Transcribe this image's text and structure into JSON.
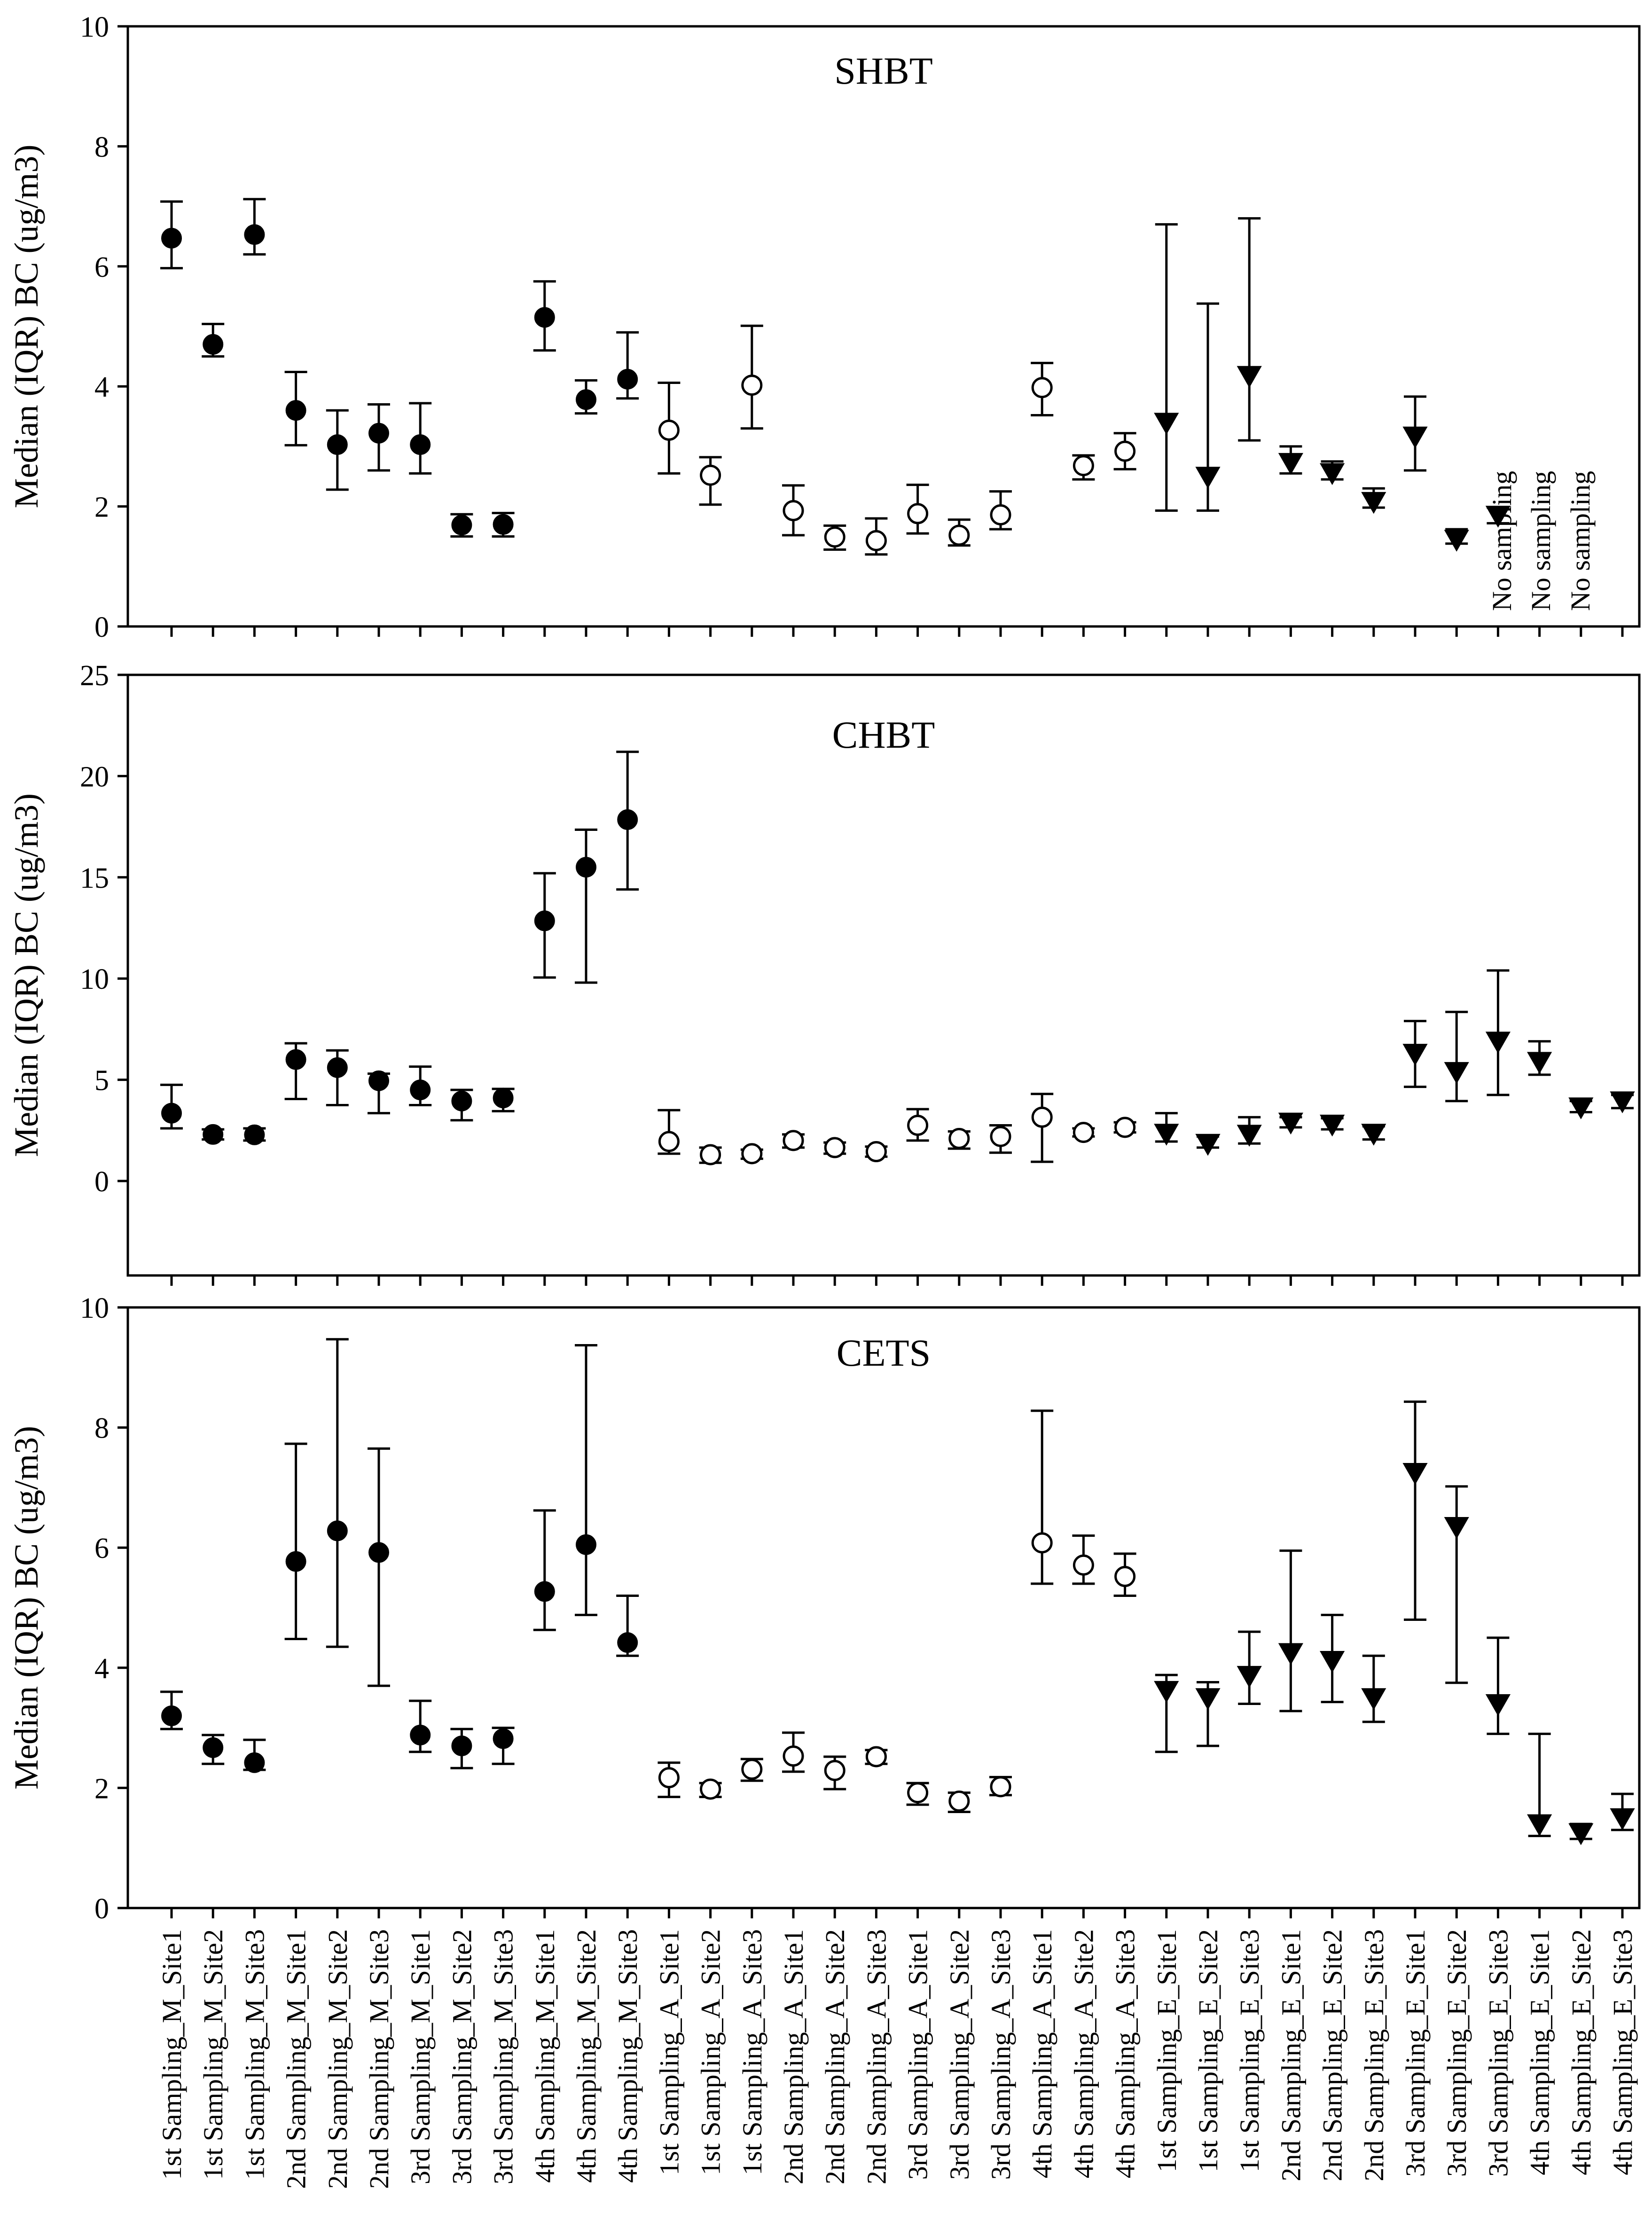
{
  "categories": [
    "1st Sampling_M_Site1",
    "1st Sampling_M_Site2",
    "1st Sampling_M_Site3",
    "2nd Sampling_M_Site1",
    "2nd Sampling_M_Site2",
    "2nd Sampling_M_Site3",
    "3rd Sampling_M_Site1",
    "3rd Sampling_M_Site2",
    "3rd Sampling_M_Site3",
    "4th Sampling_M_Site1",
    "4th Sampling_M_Site2",
    "4th Sampling_M_Site3",
    "1st Sampling_A_Site1",
    "1st Sampling_A_Site2",
    "1st Sampling_A_Site3",
    "2nd Sampling_A_Site1",
    "2nd Sampling_A_Site2",
    "2nd Sampling_A_Site3",
    "3rd Sampling_A_Site1",
    "3rd Sampling_A_Site2",
    "3rd Sampling_A_Site3",
    "4th Sampling_A_Site1",
    "4th Sampling_A_Site2",
    "4th Sampling_A_Site3",
    "1st Sampling_E_Site1",
    "1st Sampling_E_Site2",
    "1st Sampling_E_Site3",
    "2nd Sampling_E_Site1",
    "2nd Sampling_E_Site2",
    "2nd Sampling_E_Site3",
    "3rd Sampling_E_Site1",
    "3rd Sampling_E_Site2",
    "3rd Sampling_E_Site3",
    "4th Sampling_E_Site1",
    "4th Sampling_E_Site2",
    "4th Sampling_E_Site3"
  ],
  "chart_data": [
    {
      "type": "scatter",
      "title": "SHBT",
      "xlabel": "",
      "ylabel": "Median (IQR) BC (ug/m3)",
      "ylim": [
        0,
        10
      ],
      "yticks": [
        0,
        2,
        4,
        6,
        8,
        10
      ],
      "yticks_label": [
        "0",
        "2",
        "4",
        "6",
        "8",
        "10"
      ],
      "markers": [
        "filled-circle",
        "open-circle",
        "filled-triangle-down"
      ],
      "series": [
        {
          "name": "M",
          "marker": "filled-circle",
          "median": [
            6.47,
            4.7,
            6.53,
            3.6,
            3.03,
            3.22,
            3.03,
            1.69,
            1.7,
            5.15,
            3.78,
            4.12
          ],
          "q1": [
            5.97,
            4.5,
            6.2,
            3.02,
            2.28,
            2.6,
            2.55,
            1.5,
            1.5,
            4.6,
            3.55,
            3.8
          ],
          "q3": [
            7.08,
            5.04,
            7.12,
            4.24,
            3.6,
            3.7,
            3.72,
            1.87,
            1.89,
            5.75,
            4.1,
            4.9
          ]
        },
        {
          "name": "A",
          "marker": "open-circle",
          "median": [
            3.27,
            2.52,
            4.02,
            1.93,
            1.49,
            1.43,
            1.88,
            1.52,
            1.86,
            3.98,
            2.68,
            2.92
          ],
          "q1": [
            2.55,
            2.03,
            3.3,
            1.52,
            1.28,
            1.2,
            1.55,
            1.35,
            1.62,
            3.52,
            2.45,
            2.62
          ],
          "q3": [
            4.06,
            2.82,
            5.01,
            2.35,
            1.68,
            1.8,
            2.36,
            1.78,
            2.25,
            4.39,
            2.85,
            3.22
          ]
        },
        {
          "name": "E",
          "marker": "filled-triangle-down",
          "median": [
            3.4,
            2.5,
            4.18,
            2.73,
            2.56,
            2.08,
            3.17,
            1.45,
            1.85,
            null,
            null,
            null
          ],
          "q1": [
            1.93,
            1.93,
            3.1,
            2.55,
            2.45,
            1.98,
            2.6,
            1.38,
            1.72,
            null,
            null,
            null
          ],
          "q3": [
            6.7,
            5.38,
            6.8,
            3.0,
            2.75,
            2.3,
            3.83,
            1.62,
            1.98,
            null,
            null,
            null
          ]
        }
      ],
      "annotations": [
        "No sampling",
        "No sampling",
        "No sampling"
      ]
    },
    {
      "type": "scatter",
      "title": "CHBT",
      "xlabel": "",
      "ylabel": "Median (IQR) BC (ug/m3)",
      "ylim": [
        -5,
        25
      ],
      "yticks": [
        0,
        5,
        10,
        15,
        20,
        25
      ],
      "yticks_label": [
        "0",
        "5",
        "10",
        "15",
        "20",
        "25"
      ],
      "markers": [
        "filled-circle",
        "open-circle",
        "filled-triangle-down"
      ],
      "series": [
        {
          "name": "M",
          "marker": "filled-circle",
          "median": [
            3.35,
            2.3,
            2.28,
            6.0,
            5.6,
            4.95,
            4.5,
            3.95,
            4.1,
            12.85,
            15.5,
            17.85
          ],
          "q1": [
            2.6,
            2.05,
            2.0,
            4.05,
            3.75,
            3.35,
            3.75,
            3.0,
            3.45,
            10.05,
            9.8,
            14.4
          ],
          "q3": [
            4.75,
            2.55,
            2.6,
            6.8,
            6.45,
            5.3,
            5.65,
            4.5,
            4.55,
            15.2,
            17.35,
            21.2
          ]
        },
        {
          "name": "A",
          "marker": "open-circle",
          "median": [
            1.95,
            1.3,
            1.35,
            2.0,
            1.65,
            1.45,
            2.75,
            2.1,
            2.2,
            3.15,
            2.4,
            2.65
          ],
          "q1": [
            1.35,
            0.9,
            1.1,
            1.65,
            1.35,
            1.2,
            2.0,
            1.6,
            1.4,
            0.95,
            2.2,
            2.4
          ],
          "q3": [
            3.5,
            1.65,
            1.55,
            2.3,
            1.9,
            1.7,
            3.55,
            2.45,
            2.75,
            4.3,
            2.6,
            2.9
          ]
        },
        {
          "name": "E",
          "marker": "filled-triangle-down",
          "median": [
            2.35,
            1.85,
            2.3,
            2.9,
            2.8,
            2.35,
            6.3,
            5.4,
            6.9,
            5.9,
            3.65,
            3.95
          ],
          "q1": [
            1.95,
            1.65,
            1.85,
            2.65,
            2.55,
            2.05,
            4.65,
            3.95,
            4.25,
            5.25,
            3.4,
            3.6
          ],
          "q3": [
            3.35,
            2.2,
            3.15,
            3.15,
            3.1,
            2.7,
            7.9,
            8.35,
            10.4,
            6.9,
            3.95,
            4.25
          ]
        }
      ]
    },
    {
      "type": "scatter",
      "title": "CETS",
      "xlabel": "",
      "ylabel": "Median (IQR) BC (ug/m3)",
      "ylim": [
        0,
        10
      ],
      "yticks": [
        0,
        2,
        4,
        6,
        8,
        10
      ],
      "yticks_label": [
        "0",
        "2",
        "4",
        "6",
        "8",
        "10"
      ],
      "markers": [
        "filled-circle",
        "open-circle",
        "filled-triangle-down"
      ],
      "series": [
        {
          "name": "M",
          "marker": "filled-circle",
          "median": [
            3.2,
            2.67,
            2.42,
            5.77,
            6.28,
            5.92,
            2.88,
            2.7,
            2.82,
            5.27,
            6.05,
            4.42
          ],
          "q1": [
            2.98,
            2.4,
            2.3,
            4.48,
            4.35,
            3.7,
            2.6,
            2.33,
            2.4,
            4.63,
            4.88,
            4.2
          ],
          "q3": [
            3.6,
            2.88,
            2.8,
            7.73,
            9.47,
            7.65,
            3.45,
            2.98,
            3.0,
            6.62,
            9.37,
            5.2
          ]
        },
        {
          "name": "A",
          "marker": "open-circle",
          "median": [
            2.17,
            1.98,
            2.31,
            2.53,
            2.29,
            2.52,
            1.92,
            1.78,
            2.02,
            6.08,
            5.71,
            5.52
          ],
          "q1": [
            1.85,
            1.85,
            2.12,
            2.27,
            1.98,
            2.4,
            1.72,
            1.6,
            1.88,
            5.4,
            5.4,
            5.2
          ],
          "q3": [
            2.42,
            2.08,
            2.48,
            2.92,
            2.52,
            2.63,
            2.08,
            1.92,
            2.18,
            8.28,
            6.2,
            5.9
          ]
        },
        {
          "name": "E",
          "marker": "filled-triangle-down",
          "median": [
            3.62,
            3.5,
            3.87,
            4.25,
            4.12,
            3.5,
            7.25,
            6.35,
            3.4,
            1.4,
            1.25,
            1.5
          ],
          "q1": [
            2.6,
            2.7,
            3.4,
            3.28,
            3.43,
            3.1,
            4.8,
            3.75,
            2.9,
            1.2,
            1.15,
            1.3
          ],
          "q3": [
            3.88,
            3.76,
            4.6,
            5.95,
            4.88,
            4.2,
            8.43,
            7.02,
            4.5,
            2.9,
            1.4,
            1.9
          ]
        }
      ]
    }
  ]
}
